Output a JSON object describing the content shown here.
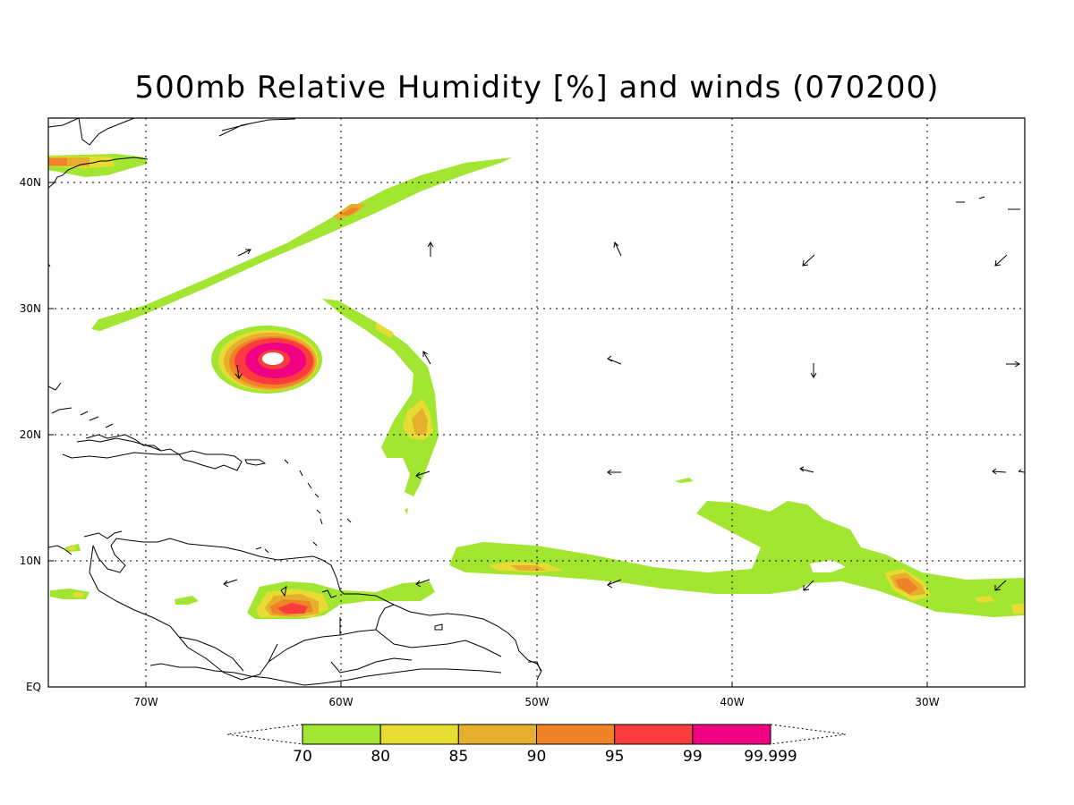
{
  "title": "500mb Relative Humidity [%] and winds (070200)",
  "lat_labels": [
    "40N",
    "30N",
    "20N",
    "10N",
    "EQ"
  ],
  "lon_labels": [
    "70W",
    "60W",
    "50W",
    "40W",
    "30W"
  ],
  "colorbar": {
    "labels": [
      "70",
      "80",
      "85",
      "90",
      "95",
      "99",
      "99.999"
    ],
    "colors": [
      "#a2e631",
      "#e6dc32",
      "#e6af2d",
      "#f08228",
      "#fa3c3c",
      "#f00082"
    ]
  },
  "palette": {
    "green": "#a2e631",
    "yellow": "#e6dc32",
    "gold": "#e6af2d",
    "orange": "#f08228",
    "red": "#fa3c3c",
    "magenta": "#f00082"
  }
}
